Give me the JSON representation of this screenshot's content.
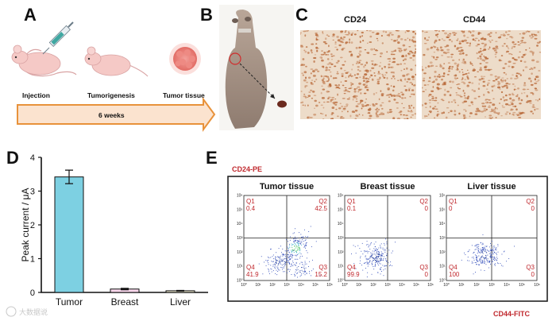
{
  "panels": {
    "A": {
      "letter": "A",
      "steps": [
        "Injection",
        "Tumorigenesis",
        "Tumor tissue"
      ],
      "timeline_label": "6 weeks"
    },
    "B": {
      "letter": "B"
    },
    "C": {
      "letter": "C",
      "stains": [
        "CD24",
        "CD44"
      ]
    },
    "D": {
      "letter": "D"
    },
    "E": {
      "letter": "E",
      "y_axis_label": "CD24-PE",
      "x_axis_label": "CD44-FITC"
    }
  },
  "watermark": "大数据说",
  "chart_data": [
    {
      "type": "bar",
      "categories": [
        "Tumor",
        "Breast",
        "Liver"
      ],
      "values": [
        3.42,
        0.1,
        0.05
      ],
      "errors": [
        0.2,
        0.02,
        0.01
      ],
      "ylabel": "Peak current / μA",
      "ylim": [
        0,
        4
      ],
      "yticks": [
        "0",
        "1",
        "2",
        "3",
        "4"
      ],
      "colors": [
        "#7dd0e2",
        "#f7d6ea",
        "#f7f3d6"
      ],
      "grid": false
    },
    {
      "type": "scatter",
      "title": "Tumor tissue",
      "xlabel": "CD44-FITC",
      "ylabel": "CD24-PE",
      "quadrants": {
        "Q1": "0.4",
        "Q2": "42.5",
        "Q3": "15.2",
        "Q4": "41.9"
      }
    },
    {
      "type": "scatter",
      "title": "Breast tissue",
      "xlabel": "CD44-FITC",
      "ylabel": "CD24-PE",
      "quadrants": {
        "Q1": "0.1",
        "Q2": "0",
        "Q3": "0",
        "Q4": "99.9"
      }
    },
    {
      "type": "scatter",
      "title": "Liver tissue",
      "xlabel": "CD44-FITC",
      "ylabel": "CD24-PE",
      "quadrants": {
        "Q1": "0",
        "Q2": "0",
        "Q3": "0",
        "Q4": "100"
      }
    }
  ],
  "flow_tick_labels": [
    "10⁰",
    "10¹",
    "10²",
    "10³",
    "10⁴",
    "10⁵",
    "10⁶"
  ],
  "colors": {
    "arrow_fill": "#fbe3cf",
    "arrow_stroke": "#e8923b",
    "ihc_bg": "#eddcc9",
    "ihc_cell": "#b96a3a",
    "quadrant_text": "#c0282d",
    "dot_blue": "#2d49b8"
  }
}
